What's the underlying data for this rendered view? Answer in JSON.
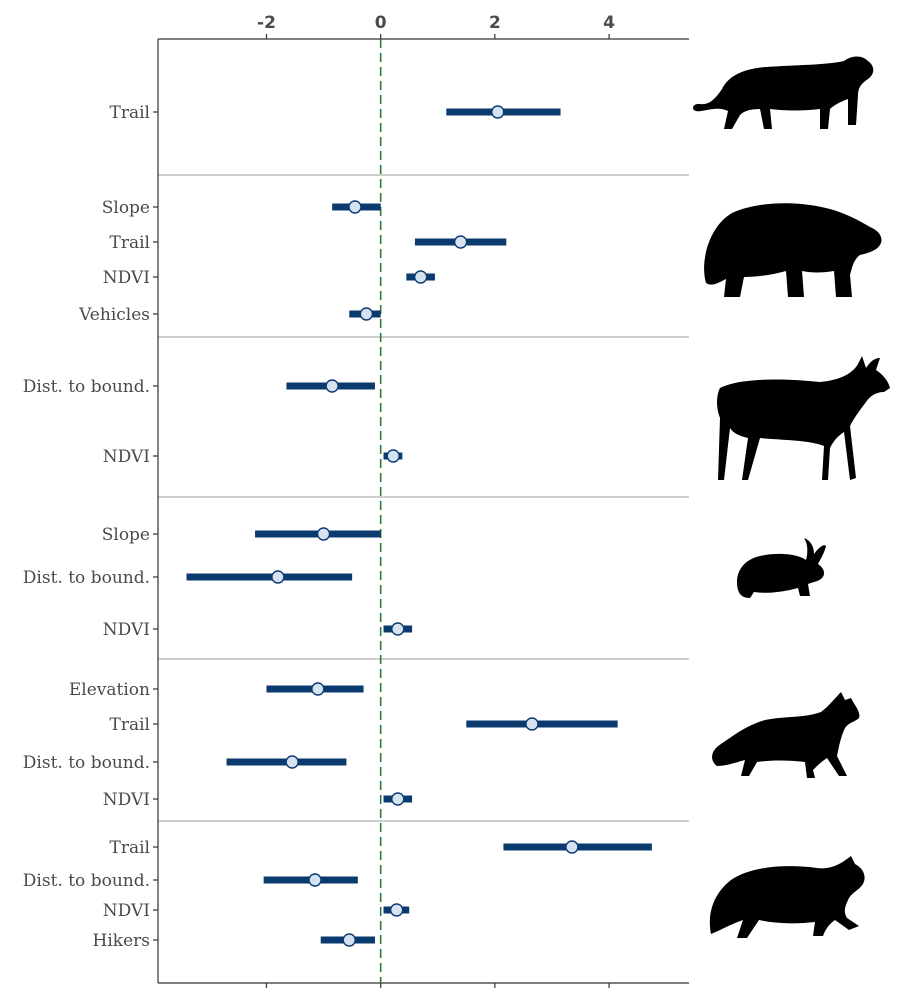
{
  "colors": {
    "interval": "#0b3a6e",
    "point_fill": "#d6e2ef",
    "point_stroke": "#0b3a6e",
    "zero_line": "#2e7d32",
    "separator": "#bdbdbd",
    "axis": "#333333",
    "silhouette": "#000000"
  },
  "chart_data": {
    "type": "scatter",
    "subtype": "coefficient-plot",
    "x_ticks": [
      -2,
      0,
      2,
      4
    ],
    "x_tick_labels": [
      "-2",
      "0",
      "2",
      "4"
    ],
    "xlim": [
      -3.9,
      5.4
    ],
    "reference_line": 0,
    "panels": [
      {
        "icon": "mountain-lion-icon",
        "rows": [
          {
            "label": "Trail",
            "estimate": 2.05,
            "lower": 1.15,
            "upper": 3.15
          }
        ]
      },
      {
        "icon": "black-bear-icon",
        "rows": [
          {
            "label": "Slope",
            "estimate": -0.45,
            "lower": -0.85,
            "upper": 0.0
          },
          {
            "label": "Trail",
            "estimate": 1.4,
            "lower": 0.6,
            "upper": 2.2
          },
          {
            "label": "NDVI",
            "estimate": 0.7,
            "lower": 0.45,
            "upper": 0.95
          },
          {
            "label": "Vehicles",
            "estimate": -0.25,
            "lower": -0.55,
            "upper": 0.0
          }
        ]
      },
      {
        "icon": "deer-icon",
        "rows": [
          {
            "label": "Dist. to bound.",
            "estimate": -0.85,
            "lower": -1.65,
            "upper": -0.1
          },
          {
            "label": "NDVI",
            "estimate": 0.22,
            "lower": 0.05,
            "upper": 0.38
          }
        ]
      },
      {
        "icon": "rabbit-icon",
        "rows": [
          {
            "label": "Slope",
            "estimate": -1.0,
            "lower": -2.2,
            "upper": 0.0
          },
          {
            "label": "Dist. to bound.",
            "estimate": -1.8,
            "lower": -3.4,
            "upper": -0.5
          },
          {
            "label": "NDVI",
            "estimate": 0.3,
            "lower": 0.05,
            "upper": 0.55
          }
        ]
      },
      {
        "icon": "coyote-icon",
        "rows": [
          {
            "label": "Elevation",
            "estimate": -1.1,
            "lower": -2.0,
            "upper": -0.3
          },
          {
            "label": "Trail",
            "estimate": 2.65,
            "lower": 1.5,
            "upper": 4.15
          },
          {
            "label": "Dist. to bound.",
            "estimate": -1.55,
            "lower": -2.7,
            "upper": -0.6
          },
          {
            "label": "NDVI",
            "estimate": 0.3,
            "lower": 0.05,
            "upper": 0.55
          }
        ]
      },
      {
        "icon": "bobcat-icon",
        "rows": [
          {
            "label": "Trail",
            "estimate": 3.35,
            "lower": 2.15,
            "upper": 4.75
          },
          {
            "label": "Dist. to bound.",
            "estimate": -1.15,
            "lower": -2.05,
            "upper": -0.4
          },
          {
            "label": "NDVI",
            "estimate": 0.28,
            "lower": 0.05,
            "upper": 0.5
          },
          {
            "label": "Hikers",
            "estimate": -0.55,
            "lower": -1.05,
            "upper": -0.1
          }
        ]
      }
    ]
  }
}
